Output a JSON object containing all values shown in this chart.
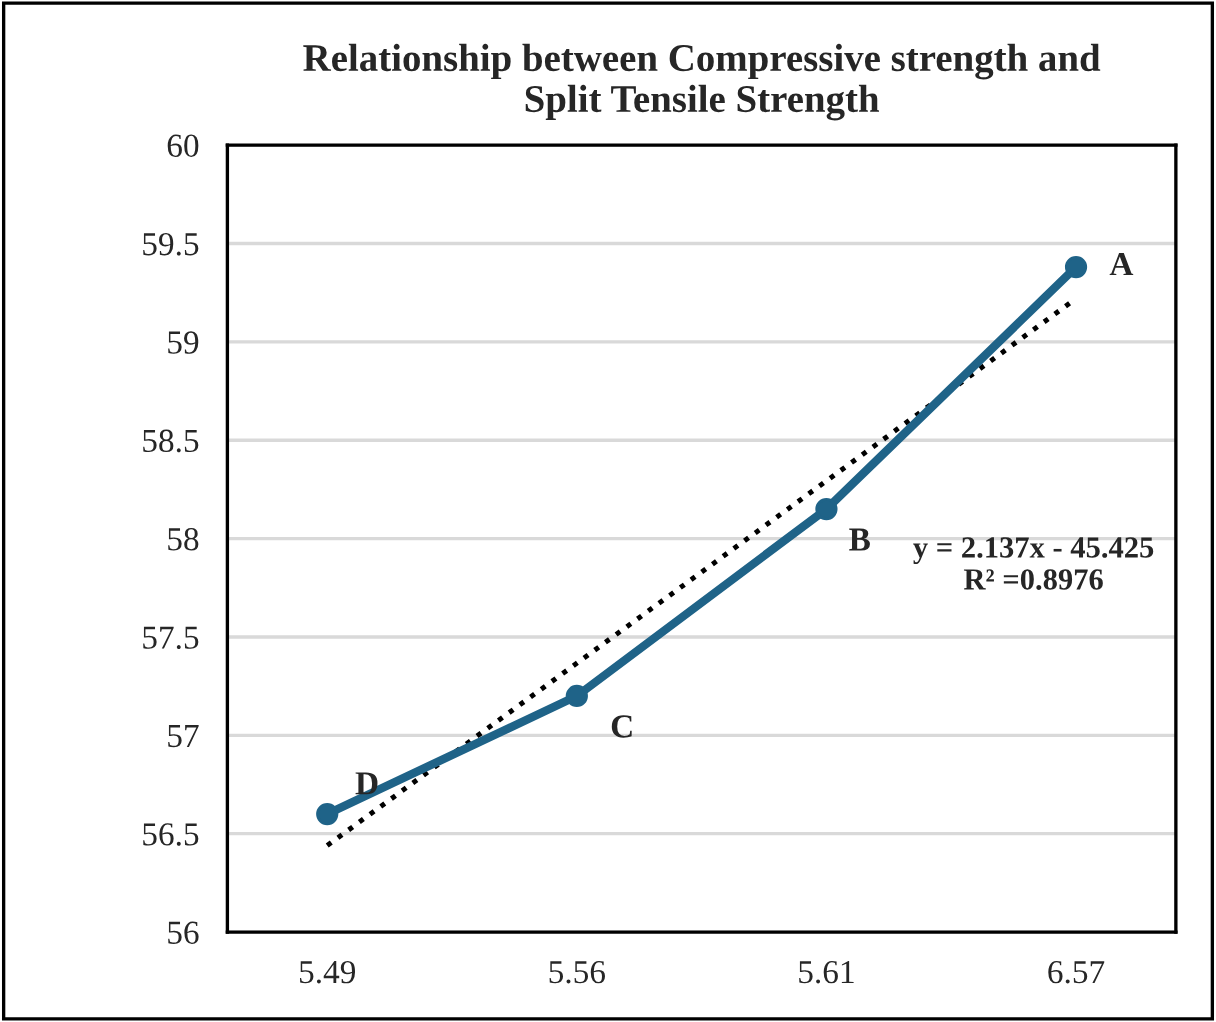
{
  "chart_data": {
    "type": "line",
    "title": "Relationship between Compressive strength and\nSplit Tensile Strength",
    "categories": [
      "5.49",
      "5.56",
      "5.61",
      "6.57"
    ],
    "series": [
      {
        "color": "#1f6388",
        "values": [
          56.6,
          57.2,
          58.15,
          59.38
        ],
        "marker": "circle",
        "line_style": "solid"
      },
      {
        "type": "line",
        "color": "#000000",
        "x": [
          "5.49",
          "6.57"
        ],
        "values": [
          56.44,
          59.22
        ],
        "marker": "none",
        "line_style": "dotted"
      }
    ],
    "ylim": [
      56,
      60
    ],
    "yticks": [
      56,
      56.5,
      57,
      57.5,
      58,
      58.5,
      59,
      59.5,
      60
    ],
    "grid": "y",
    "legend": false,
    "annotations": [
      {
        "text": "A",
        "x": "6.57",
        "y": 59.38
      },
      {
        "text": "B",
        "x": "5.61",
        "y": 58.15
      },
      {
        "text": "C",
        "x": "5.56",
        "y": 57.2
      },
      {
        "text": "D",
        "x": "5.49",
        "y": 56.6
      },
      "y = 2.137x - 45.425\nR² =0.8976"
    ]
  }
}
